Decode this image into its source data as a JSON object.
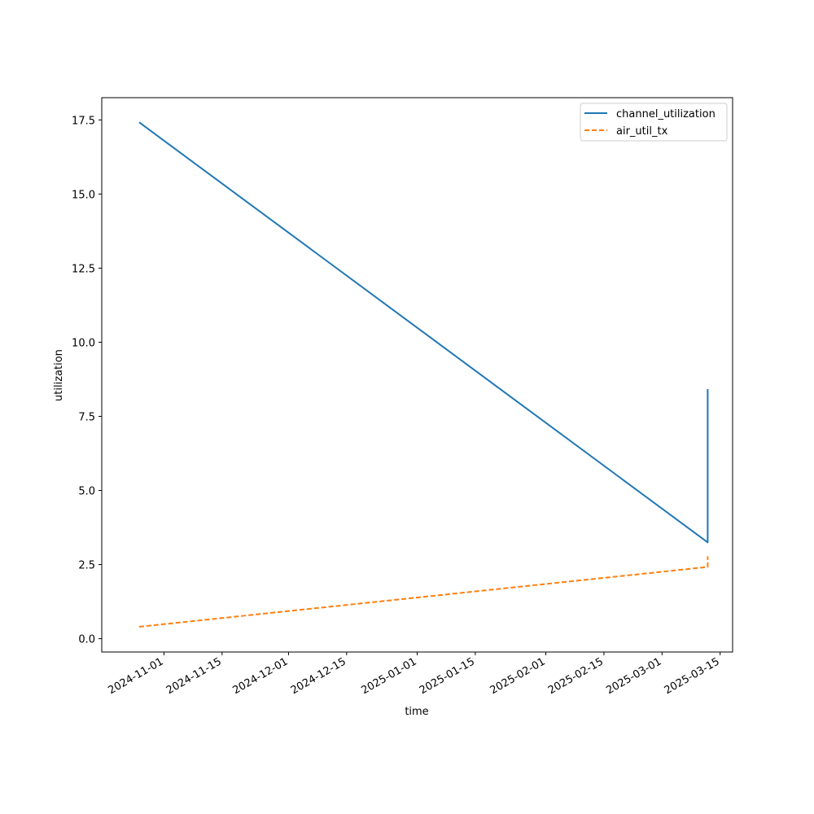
{
  "chart_data": {
    "type": "line",
    "xlabel": "time",
    "ylabel": "utilization",
    "ylim": [
      -0.45,
      18.25
    ],
    "xlim": [
      "2024-10-17",
      "2025-03-18"
    ],
    "yticks": [
      {
        "value": 0.0,
        "label": "0.0"
      },
      {
        "value": 2.5,
        "label": "2.5"
      },
      {
        "value": 5.0,
        "label": "5.0"
      },
      {
        "value": 7.5,
        "label": "7.5"
      },
      {
        "value": 10.0,
        "label": "10.0"
      },
      {
        "value": 12.5,
        "label": "12.5"
      },
      {
        "value": 15.0,
        "label": "15.0"
      },
      {
        "value": 17.5,
        "label": "17.5"
      }
    ],
    "xticks": [
      {
        "value": "2024-11-01",
        "label": "2024-11-01"
      },
      {
        "value": "2024-11-15",
        "label": "2024-11-15"
      },
      {
        "value": "2024-12-01",
        "label": "2024-12-01"
      },
      {
        "value": "2024-12-15",
        "label": "2024-12-15"
      },
      {
        "value": "2025-01-01",
        "label": "2025-01-01"
      },
      {
        "value": "2025-01-15",
        "label": "2025-01-15"
      },
      {
        "value": "2025-02-01",
        "label": "2025-02-01"
      },
      {
        "value": "2025-02-15",
        "label": "2025-02-15"
      },
      {
        "value": "2025-03-01",
        "label": "2025-03-01"
      },
      {
        "value": "2025-03-15",
        "label": "2025-03-15"
      }
    ],
    "grid": false,
    "legend_position": "top-right",
    "series": [
      {
        "name": "channel_utilization",
        "color": "#1f77b4",
        "style": "solid",
        "points": [
          {
            "x": "2024-10-26",
            "y": 17.42
          },
          {
            "x": "2025-03-12",
            "y": 3.25
          },
          {
            "x": "2025-03-12",
            "y": 8.42
          }
        ]
      },
      {
        "name": "air_util_tx",
        "color": "#ff7f0e",
        "style": "dashed",
        "points": [
          {
            "x": "2024-10-26",
            "y": 0.4
          },
          {
            "x": "2025-03-12",
            "y": 2.42
          },
          {
            "x": "2025-03-12",
            "y": 2.78
          }
        ]
      }
    ]
  }
}
